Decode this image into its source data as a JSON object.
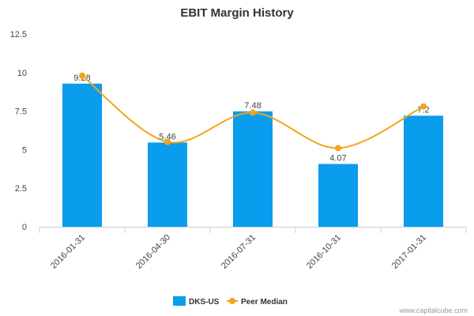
{
  "chart_data": {
    "type": "bar",
    "title": "EBIT Margin History",
    "categories": [
      "2016-01-31",
      "2016-04-30",
      "2016-07-31",
      "2016-10-31",
      "2017-01-31"
    ],
    "series": [
      {
        "name": "DKS-US",
        "type": "bar",
        "values": [
          9.28,
          5.46,
          7.48,
          4.07,
          7.2
        ],
        "labels": [
          "9.28",
          "5.46",
          "7.48",
          "4.07",
          "7.2"
        ],
        "color": "#0a9ded"
      },
      {
        "name": "Peer Median",
        "type": "line",
        "values": [
          9.8,
          5.5,
          7.4,
          5.1,
          7.8
        ],
        "color": "#f5a31c"
      }
    ],
    "yticks": [
      "0",
      "2.5",
      "5",
      "7.5",
      "10",
      "12.5"
    ],
    "ylim": [
      0,
      12.5
    ],
    "grid": false,
    "legend_position": "bottom-center",
    "credit": "www.capitalcube.com"
  }
}
